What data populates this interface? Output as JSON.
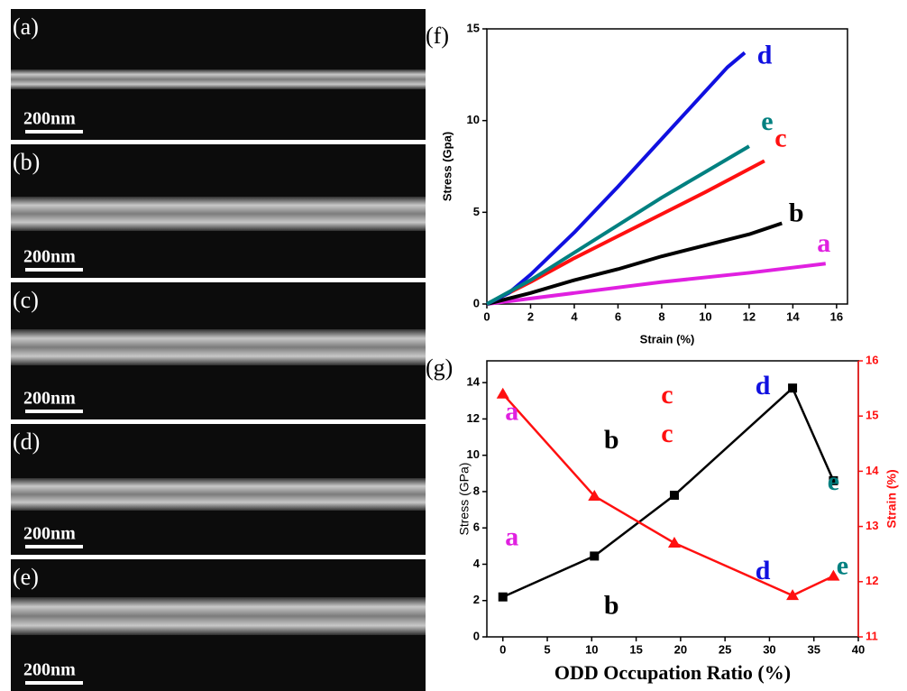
{
  "panels": [
    {
      "label": "(a)",
      "scale_bar": "200nm"
    },
    {
      "label": "(b)",
      "scale_bar": "200nm"
    },
    {
      "label": "(c)",
      "scale_bar": "200nm"
    },
    {
      "label": "(d)",
      "scale_bar": "200nm"
    },
    {
      "label": "(e)",
      "scale_bar": "200nm"
    }
  ],
  "chart_data": [
    {
      "type": "line",
      "panel_label": "(f)",
      "x_label": "Strain (%)",
      "y_label": "Stress (Gpa)",
      "xlim": [
        0,
        16.5
      ],
      "ylim": [
        0,
        15
      ],
      "xticks": [
        0,
        2,
        4,
        6,
        8,
        10,
        12,
        14,
        16
      ],
      "yticks": [
        0,
        5,
        10,
        15
      ],
      "series": [
        {
          "name": "a",
          "color": "#e020e0",
          "x": [
            0,
            4,
            8,
            12,
            15.5
          ],
          "values": [
            0,
            0.6,
            1.2,
            1.7,
            2.2
          ]
        },
        {
          "name": "b",
          "color": "#000000",
          "x": [
            0,
            2,
            4,
            6,
            8,
            10,
            12,
            13.5
          ],
          "values": [
            0,
            0.6,
            1.3,
            1.9,
            2.6,
            3.2,
            3.8,
            4.4
          ]
        },
        {
          "name": "c",
          "color": "#ff1010",
          "x": [
            0,
            2,
            4,
            6,
            8,
            10,
            12.7
          ],
          "values": [
            0,
            1.2,
            2.5,
            3.7,
            4.9,
            6.1,
            7.8
          ]
        },
        {
          "name": "d",
          "color": "#1010e0",
          "x": [
            0,
            1,
            2,
            4,
            6,
            8,
            10,
            11,
            11.8
          ],
          "values": [
            0,
            0.6,
            1.6,
            3.9,
            6.4,
            9.0,
            11.6,
            12.9,
            13.7
          ]
        },
        {
          "name": "e",
          "color": "#008080",
          "x": [
            0,
            2,
            4,
            6,
            8,
            10,
            12
          ],
          "values": [
            0,
            1.3,
            2.8,
            4.3,
            5.8,
            7.2,
            8.6
          ]
        }
      ]
    },
    {
      "type": "line",
      "panel_label": "(g)",
      "x_label": "ODD Occupation Ratio (%)",
      "y_label": "Stress (GPa)",
      "y2_label": "Strain (%)",
      "xlim": [
        -1.8,
        40
      ],
      "ylim": [
        0,
        15.2
      ],
      "y2lim": [
        11,
        16
      ],
      "xticks": [
        0,
        5,
        10,
        15,
        20,
        25,
        30,
        35,
        40
      ],
      "yticks": [
        0,
        2,
        4,
        6,
        8,
        10,
        12,
        14
      ],
      "y2ticks": [
        11,
        12,
        13,
        14,
        15,
        16
      ],
      "y2_color": "#ff1010",
      "x": [
        0,
        10.3,
        19.3,
        32.6,
        37.2
      ],
      "label_colors": [
        "#e020e0",
        "#000000",
        "#ff1010",
        "#1010e0",
        "#008080"
      ],
      "series": [
        {
          "color": "#000000",
          "marker": "square",
          "values": [
            2.2,
            4.45,
            7.8,
            13.7,
            8.6
          ],
          "point_labels": [
            "a",
            "b",
            "c",
            "d",
            "e"
          ]
        },
        {
          "color": "#ff1010",
          "marker": "triangle",
          "axis": "y2",
          "values": [
            15.4,
            13.55,
            12.7,
            11.75,
            12.1
          ],
          "point_labels": [
            "a",
            "b",
            "c",
            "d",
            "e"
          ]
        }
      ]
    }
  ]
}
